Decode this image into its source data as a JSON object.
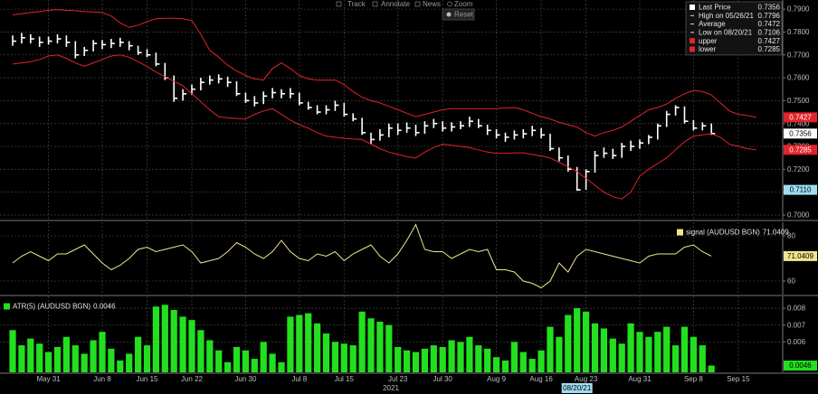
{
  "toolbar": [
    "Track",
    "Annotate",
    "News",
    "Zoom"
  ],
  "reset": "Reset",
  "chart_data": {
    "type": "panels",
    "x": [
      "2021-05-25",
      "2021-05-26",
      "2021-05-27",
      "2021-05-28",
      "2021-05-31",
      "2021-06-01",
      "2021-06-02",
      "2021-06-03",
      "2021-06-04",
      "2021-06-07",
      "2021-06-08",
      "2021-06-09",
      "2021-06-10",
      "2021-06-11",
      "2021-06-14",
      "2021-06-15",
      "2021-06-16",
      "2021-06-17",
      "2021-06-18",
      "2021-06-21",
      "2021-06-22",
      "2021-06-23",
      "2021-06-24",
      "2021-06-25",
      "2021-06-28",
      "2021-06-29",
      "2021-06-30",
      "2021-07-01",
      "2021-07-02",
      "2021-07-05",
      "2021-07-06",
      "2021-07-07",
      "2021-07-08",
      "2021-07-09",
      "2021-07-12",
      "2021-07-13",
      "2021-07-14",
      "2021-07-15",
      "2021-07-16",
      "2021-07-19",
      "2021-07-20",
      "2021-07-21",
      "2021-07-22",
      "2021-07-23",
      "2021-07-26",
      "2021-07-27",
      "2021-07-28",
      "2021-07-29",
      "2021-07-30",
      "2021-08-02",
      "2021-08-03",
      "2021-08-04",
      "2021-08-05",
      "2021-08-06",
      "2021-08-09",
      "2021-08-10",
      "2021-08-11",
      "2021-08-12",
      "2021-08-13",
      "2021-08-16",
      "2021-08-17",
      "2021-08-18",
      "2021-08-19",
      "2021-08-20",
      "2021-08-23",
      "2021-08-24",
      "2021-08-25",
      "2021-08-26",
      "2021-08-27",
      "2021-08-30",
      "2021-08-31",
      "2021-09-01",
      "2021-09-02",
      "2021-09-03",
      "2021-09-06",
      "2021-09-07",
      "2021-09-08",
      "2021-09-09",
      "2021-09-10",
      "2021-09-13",
      "2021-09-14",
      "2021-09-15",
      "2021-09-16",
      "2021-09-17"
    ],
    "xticks": [
      {
        "value": "2021-05-31",
        "label": "May 31"
      },
      {
        "value": "2021-06-08",
        "label": "Jun 8"
      },
      {
        "value": "2021-06-15",
        "label": "Jun 15"
      },
      {
        "value": "2021-06-22",
        "label": "Jun 22"
      },
      {
        "value": "2021-06-30",
        "label": "Jun 30"
      },
      {
        "value": "2021-07-08",
        "label": "Jul 8"
      },
      {
        "value": "2021-07-15",
        "label": "Jul 15"
      },
      {
        "value": "2021-07-23",
        "label": "Jul 23"
      },
      {
        "value": "2021-07-30",
        "label": "Jul 30"
      },
      {
        "value": "2021-08-09",
        "label": "Aug 9"
      },
      {
        "value": "2021-08-16",
        "label": "Aug 16"
      },
      {
        "value": "2021-08-23",
        "label": "Aug 23"
      },
      {
        "value": "2021-08-31",
        "label": "Aug 31"
      },
      {
        "value": "2021-09-08",
        "label": "Sep 8"
      },
      {
        "value": "2021-09-15",
        "label": "Sep 15"
      }
    ],
    "xlabel": "2021",
    "crosshair": {
      "value": "2021-08-20",
      "label": "08/20/21"
    },
    "grid": true,
    "panels": [
      {
        "type": "ohlc",
        "legend": "upper right",
        "legend_frame": true,
        "ylim": [
          0.698,
          0.794
        ],
        "yticks": [
          {
            "value": 0.7,
            "label": "0.7000"
          },
          {
            "value": 0.71,
            "label": "0.7100"
          },
          {
            "value": 0.72,
            "label": "0.7200"
          },
          {
            "value": 0.73,
            "label": "0.7300"
          },
          {
            "value": 0.74,
            "label": "0.7400"
          },
          {
            "value": 0.75,
            "label": "0.7500"
          },
          {
            "value": 0.76,
            "label": "0.7600"
          },
          {
            "value": 0.77,
            "label": "0.7700"
          },
          {
            "value": 0.78,
            "label": "0.7800"
          },
          {
            "value": 0.79,
            "label": "0.7900"
          }
        ],
        "series": [
          {
            "name": "Last Price",
            "color": "#ffffff",
            "high": [
              0.7785,
              0.7796,
              0.779,
              0.778,
              0.778,
              0.779,
              0.7785,
              0.776,
              0.7735,
              0.7765,
              0.7765,
              0.777,
              0.7775,
              0.776,
              0.774,
              0.7725,
              0.771,
              0.7665,
              0.761,
              0.755,
              0.757,
              0.76,
              0.761,
              0.7615,
              0.7605,
              0.7585,
              0.7535,
              0.752,
              0.754,
              0.7555,
              0.755,
              0.7555,
              0.7535,
              0.7495,
              0.748,
              0.748,
              0.75,
              0.749,
              0.7445,
              0.7425,
              0.736,
              0.7375,
              0.74,
              0.74,
              0.7405,
              0.7395,
              0.741,
              0.742,
              0.741,
              0.7405,
              0.741,
              0.743,
              0.742,
              0.7395,
              0.7375,
              0.736,
              0.737,
              0.7375,
              0.739,
              0.738,
              0.7355,
              0.7295,
              0.726,
              0.721,
              0.72,
              0.728,
              0.7295,
              0.729,
              0.7315,
              0.7325,
              0.733,
              0.735,
              0.74,
              0.7455,
              0.748,
              0.7475,
              0.7415,
              0.7405,
              0.74,
              null,
              null,
              null,
              null,
              null
            ],
            "low": [
              0.774,
              0.775,
              0.775,
              0.7735,
              0.7745,
              0.775,
              0.7735,
              0.7685,
              0.7695,
              0.7715,
              0.7725,
              0.773,
              0.7735,
              0.772,
              0.77,
              0.769,
              0.765,
              0.759,
              0.7495,
              0.75,
              0.7525,
              0.7545,
              0.757,
              0.7575,
              0.756,
              0.752,
              0.749,
              0.7475,
              0.7485,
              0.751,
              0.751,
              0.751,
              0.748,
              0.746,
              0.744,
              0.744,
              0.7455,
              0.743,
              0.741,
              0.735,
              0.731,
              0.7325,
              0.734,
              0.735,
              0.736,
              0.7345,
              0.7355,
              0.738,
              0.7365,
              0.7365,
              0.7375,
              0.7385,
              0.738,
              0.735,
              0.7335,
              0.732,
              0.733,
              0.7335,
              0.7345,
              0.7335,
              0.728,
              0.7235,
              0.719,
              0.7106,
              0.711,
              0.7185,
              0.725,
              0.7245,
              0.725,
              0.728,
              0.729,
              0.731,
              0.733,
              0.7385,
              0.7435,
              0.74,
              0.737,
              0.737,
              0.735,
              null,
              null,
              null,
              null,
              null
            ],
            "close": [
              0.776,
              0.7775,
              0.777,
              0.7755,
              0.776,
              0.777,
              0.7755,
              0.77,
              0.772,
              0.775,
              0.7745,
              0.775,
              0.7755,
              0.774,
              0.771,
              0.77,
              0.766,
              0.76,
              0.751,
              0.753,
              0.755,
              0.758,
              0.759,
              0.7595,
              0.758,
              0.753,
              0.75,
              0.749,
              0.752,
              0.7535,
              0.753,
              0.753,
              0.749,
              0.747,
              0.745,
              0.746,
              0.748,
              0.744,
              0.742,
              0.736,
              0.733,
              0.735,
              0.738,
              0.737,
              0.738,
              0.736,
              0.739,
              0.74,
              0.738,
              0.7385,
              0.739,
              0.741,
              0.739,
              0.737,
              0.735,
              0.734,
              0.735,
              0.7355,
              0.737,
              0.735,
              0.729,
              0.725,
              0.72,
              0.711,
              0.719,
              0.726,
              0.727,
              0.726,
              0.73,
              0.73,
              0.7315,
              0.734,
              0.739,
              0.744,
              0.747,
              0.741,
              0.738,
              0.739,
              0.7356,
              null,
              null,
              null,
              null,
              null
            ]
          },
          {
            "name": "upper",
            "color": "#e3232c",
            "values": [
              0.7875,
              0.788,
              0.7885,
              0.789,
              0.7895,
              0.7898,
              0.7895,
              0.7893,
              0.789,
              0.7888,
              0.7885,
              0.787,
              0.784,
              0.782,
              0.783,
              0.7845,
              0.7858,
              0.786,
              0.786,
              0.7858,
              0.785,
              0.779,
              0.772,
              0.769,
              0.7655,
              0.763,
              0.761,
              0.7595,
              0.759,
              0.764,
              0.7665,
              0.764,
              0.761,
              0.7595,
              0.759,
              0.759,
              0.759,
              0.757,
              0.754,
              0.7515,
              0.75,
              0.749,
              0.7475,
              0.746,
              0.7445,
              0.743,
              0.744,
              0.745,
              0.746,
              0.7465,
              0.7465,
              0.7465,
              0.7465,
              0.7465,
              0.7465,
              0.7468,
              0.747,
              0.746,
              0.7445,
              0.743,
              0.742,
              0.7405,
              0.7395,
              0.7385,
              0.736,
              0.7345,
              0.736,
              0.737,
              0.7385,
              0.741,
              0.7435,
              0.746,
              0.747,
              0.7485,
              0.751,
              0.753,
              0.7545,
              0.754,
              0.7525,
              0.749,
              0.7455,
              0.744,
              0.7435,
              0.7427
            ]
          },
          {
            "name": "lower",
            "color": "#e3232c",
            "values": [
              0.766,
              0.7665,
              0.767,
              0.768,
              0.7695,
              0.77,
              0.7685,
              0.7665,
              0.765,
              0.7665,
              0.768,
              0.7695,
              0.77,
              0.769,
              0.767,
              0.765,
              0.7625,
              0.7605,
              0.7585,
              0.7565,
              0.753,
              0.7495,
              0.746,
              0.743,
              0.7425,
              0.7422,
              0.742,
              0.744,
              0.7455,
              0.7465,
              0.744,
              0.7415,
              0.7395,
              0.738,
              0.736,
              0.7345,
              0.734,
              0.7335,
              0.7332,
              0.733,
              0.731,
              0.729,
              0.7275,
              0.7265,
              0.7255,
              0.725,
              0.7275,
              0.7295,
              0.731,
              0.7305,
              0.73,
              0.7295,
              0.7285,
              0.7275,
              0.727,
              0.727,
              0.7272,
              0.7272,
              0.7265,
              0.7258,
              0.725,
              0.723,
              0.721,
              0.719,
              0.716,
              0.713,
              0.71,
              0.708,
              0.707,
              0.71,
              0.717,
              0.72,
              0.7225,
              0.725,
              0.7285,
              0.732,
              0.7345,
              0.735,
              0.7355,
              0.734,
              0.731,
              0.73,
              0.729,
              0.7285
            ]
          }
        ],
        "stats": [
          {
            "label": "High on 05/26/21",
            "value": 0.7796
          },
          {
            "label": "Average",
            "value": 0.7472
          },
          {
            "label": "Low on 08/20/21",
            "value": 0.7106
          }
        ],
        "markers": [
          {
            "value": 0.711,
            "label": "0.7110",
            "color": "#9fdcf2"
          }
        ]
      },
      {
        "type": "line",
        "legend": "upper right",
        "legend_frame": false,
        "ylim": [
          54,
          86
        ],
        "yticks": [
          60,
          80
        ],
        "series": [
          {
            "name": "signal (AUDUSD BGN)",
            "color": "#efe68f",
            "values": [
              68,
              71,
              73,
              71,
              69,
              72,
              72,
              74,
              76,
              72,
              68,
              65,
              67,
              70,
              74,
              75,
              73,
              74,
              75,
              76,
              73,
              68,
              69,
              70,
              73,
              77,
              75,
              72,
              70,
              73,
              78,
              73,
              70,
              69,
              72,
              71,
              73,
              69,
              72,
              74,
              76,
              71,
              68,
              72,
              78,
              85,
              74,
              73,
              73,
              70,
              72,
              74,
              73,
              74,
              65,
              65,
              64,
              60,
              59,
              57,
              60,
              68,
              64,
              71,
              74,
              73,
              72,
              71,
              70,
              69,
              68,
              71,
              72,
              72,
              72,
              75,
              76,
              73,
              71.0409,
              null,
              null,
              null,
              null,
              null
            ]
          }
        ]
      },
      {
        "type": "bar",
        "legend": "upper left",
        "legend_frame": false,
        "ylim": [
          0.0042,
          0.0087
        ],
        "yticks": [
          0.006,
          0.007,
          0.008
        ],
        "series": [
          {
            "name": "ATR(5) (AUDUSD BGN)",
            "color": "#22e01f",
            "values": [
              0.0067,
              0.0058,
              0.0062,
              0.0059,
              0.0054,
              0.0057,
              0.0063,
              0.0058,
              0.0053,
              0.0061,
              0.0066,
              0.0056,
              0.0049,
              0.0053,
              0.0063,
              0.0058,
              0.0081,
              0.0082,
              0.0079,
              0.0075,
              0.0073,
              0.0067,
              0.0061,
              0.0055,
              0.0048,
              0.0057,
              0.0055,
              0.005,
              0.006,
              0.0053,
              0.0048,
              0.0075,
              0.0076,
              0.0077,
              0.0071,
              0.0065,
              0.006,
              0.0059,
              0.0058,
              0.0078,
              0.0074,
              0.0072,
              0.007,
              0.0057,
              0.0055,
              0.0054,
              0.0056,
              0.0058,
              0.0057,
              0.0061,
              0.006,
              0.0063,
              0.0058,
              0.0056,
              0.0051,
              0.0049,
              0.006,
              0.0054,
              0.005,
              0.0055,
              0.0069,
              0.0063,
              0.0076,
              0.008,
              0.0078,
              0.0071,
              0.0068,
              0.0062,
              0.0059,
              0.0071,
              0.0066,
              0.0063,
              0.0066,
              0.0069,
              0.0058,
              0.0069,
              0.0063,
              0.0058,
              0.0046,
              null,
              null,
              null,
              null,
              null
            ]
          }
        ]
      }
    ]
  }
}
